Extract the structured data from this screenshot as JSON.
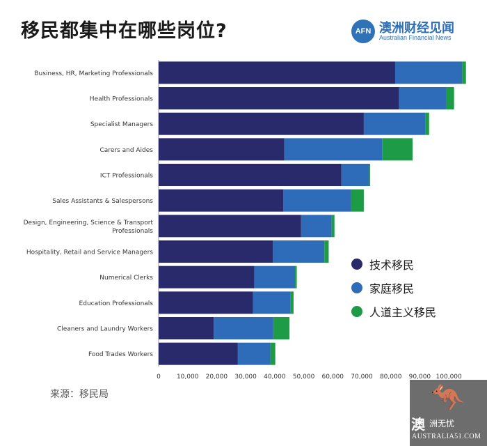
{
  "title": "移民都集中在哪些岗位?",
  "brand": {
    "logo": "AFN",
    "name_cn": "澳洲财经见闻",
    "name_en": "Australian Financial News"
  },
  "source": "来源：移民局",
  "corner_watermark": {
    "symbol": "🦘",
    "cn": "澳",
    "cn2": "洲无忧",
    "en": "AUSTRALIA51.COM"
  },
  "chart_data": {
    "type": "bar",
    "orientation": "horizontal",
    "stacked": true,
    "title": "移民都集中在哪些岗位?",
    "categories": [
      "Business, HR, Marketing Professionals",
      "Health Professionals",
      "Specialist Managers",
      "Carers and Aides",
      "ICT Professionals",
      "Sales Assistants & Salespersons",
      "Design, Engineering, Science & Transport Professionals",
      "Hospitality, Retail and Service Managers",
      "Numerical Clerks",
      "Education Professionals",
      "Cleaners and Laundry Workers",
      "Food Trades Workers"
    ],
    "category_lines": [
      [
        "Business, HR, Marketing Professionals"
      ],
      [
        "Health Professionals"
      ],
      [
        "Specialist Managers"
      ],
      [
        "Carers and Aides"
      ],
      [
        "ICT Professionals"
      ],
      [
        "Sales Assistants & Salespersons"
      ],
      [
        "Design, Engineering, Science & Transport",
        "Professionals"
      ],
      [
        "Hospitality, Retail and Service Managers"
      ],
      [
        "Numerical Clerks"
      ],
      [
        "Education Professionals"
      ],
      [
        "Cleaners and Laundry Workers"
      ],
      [
        "Food Trades Workers"
      ]
    ],
    "series": [
      {
        "name": "技术移民",
        "color": "#282a6b",
        "values": [
          81500,
          82800,
          70700,
          43300,
          63000,
          43000,
          49100,
          39400,
          33000,
          32500,
          19000,
          27300
        ]
      },
      {
        "name": "家庭移民",
        "color": "#2e6bb8",
        "values": [
          23100,
          16200,
          21300,
          33700,
          9500,
          23300,
          10500,
          17700,
          14000,
          13000,
          20500,
          11200
        ]
      },
      {
        "name": "人道主义移民",
        "color": "#1e9b46",
        "values": [
          1300,
          2800,
          1200,
          10500,
          400,
          4400,
          1000,
          1500,
          600,
          1000,
          5600,
          1700
        ]
      }
    ],
    "xlim": [
      0,
      105000
    ],
    "xticks": [
      0,
      10000,
      20000,
      30000,
      40000,
      50000,
      60000,
      70000,
      80000,
      90000,
      100000
    ],
    "xtick_labels": [
      "0",
      "10,000",
      "20,000",
      "30,000",
      "40,000",
      "50,000",
      "60,000",
      "70,000",
      "80,000",
      "90,000",
      "100,000"
    ],
    "legend_position": "right"
  }
}
